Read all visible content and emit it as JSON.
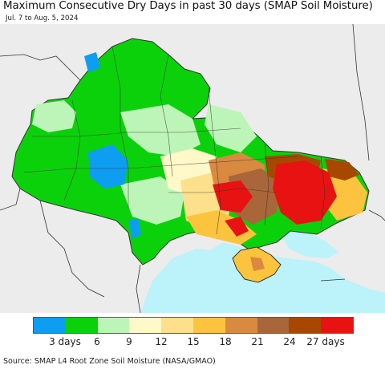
{
  "title": "Maximum Consecutive Dry Days in past 30 days (SMAP Soil Moisture)",
  "subtitle": "Jul. 7 to Aug. 5, 2024",
  "legend": {
    "colors": [
      "#0d9ef2",
      "#0bd10b",
      "#bdf5b8",
      "#fff8c8",
      "#fde08c",
      "#fcc43e",
      "#d98940",
      "#a8663a",
      "#a84800",
      "#e81212"
    ],
    "labels": [
      "3 days",
      "6",
      "9",
      "12",
      "15",
      "18",
      "21",
      "24",
      "27 days"
    ]
  },
  "colors": {
    "sea": "#bcf2fa",
    "land_outside": "#ececec",
    "border": "#333333"
  },
  "source": "Source: SMAP L4 Root Zone Soil Moisture (NASA/GMAO)"
}
